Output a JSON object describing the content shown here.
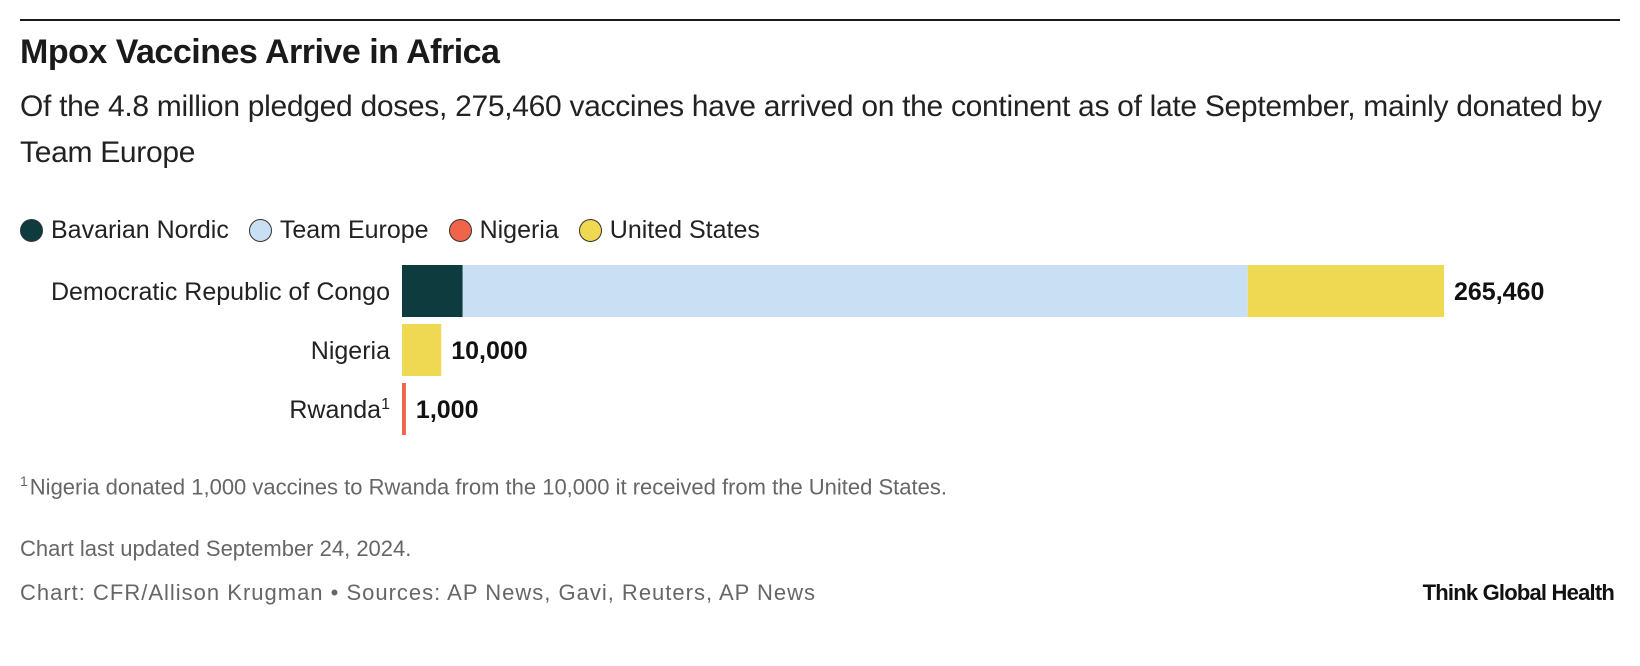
{
  "header": {
    "title": "Mpox Vaccines Arrive in Africa",
    "subtitle": "Of the 4.8 million pledged doses, 275,460 vaccines have arrived on the continent as of late September, mainly donated by Team Europe"
  },
  "legend": [
    {
      "label": "Bavarian Nordic",
      "color": "#0d3b3e"
    },
    {
      "label": "Team Europe",
      "color": "#c9dff4"
    },
    {
      "label": "Nigeria",
      "color": "#f0644a"
    },
    {
      "label": "United States",
      "color": "#efd952"
    }
  ],
  "chart_data": {
    "type": "bar",
    "orientation": "horizontal",
    "stacked": true,
    "categories": [
      "Democratic Republic of Congo",
      "Nigeria",
      "Rwanda"
    ],
    "category_footnote_marks": [
      "",
      "",
      "1"
    ],
    "series": [
      {
        "name": "Bavarian Nordic",
        "color": "#0d3b3e",
        "values": [
          15460,
          0,
          0
        ]
      },
      {
        "name": "Team Europe",
        "color": "#c9dff4",
        "values": [
          200000,
          0,
          0
        ]
      },
      {
        "name": "Nigeria",
        "color": "#f0644a",
        "values": [
          0,
          0,
          1000
        ]
      },
      {
        "name": "United States",
        "color": "#efd952",
        "values": [
          50000,
          10000,
          0
        ]
      }
    ],
    "totals": [
      265460,
      10000,
      1000
    ],
    "total_labels": [
      "265,460",
      "10,000",
      "1,000"
    ],
    "xlim": [
      0,
      265460
    ],
    "grid": false,
    "legend_position": "top-left"
  },
  "footnote": {
    "mark": "1",
    "text": "Nigeria donated 1,000 vaccines to Rwanda from the 10,000 it received from the United States."
  },
  "footer": {
    "updated": "Chart last updated September 24, 2024.",
    "credits": "Chart: CFR/Allison Krugman • Sources: AP News, Gavi, Reuters, AP News",
    "brand": "Think Global Health"
  }
}
